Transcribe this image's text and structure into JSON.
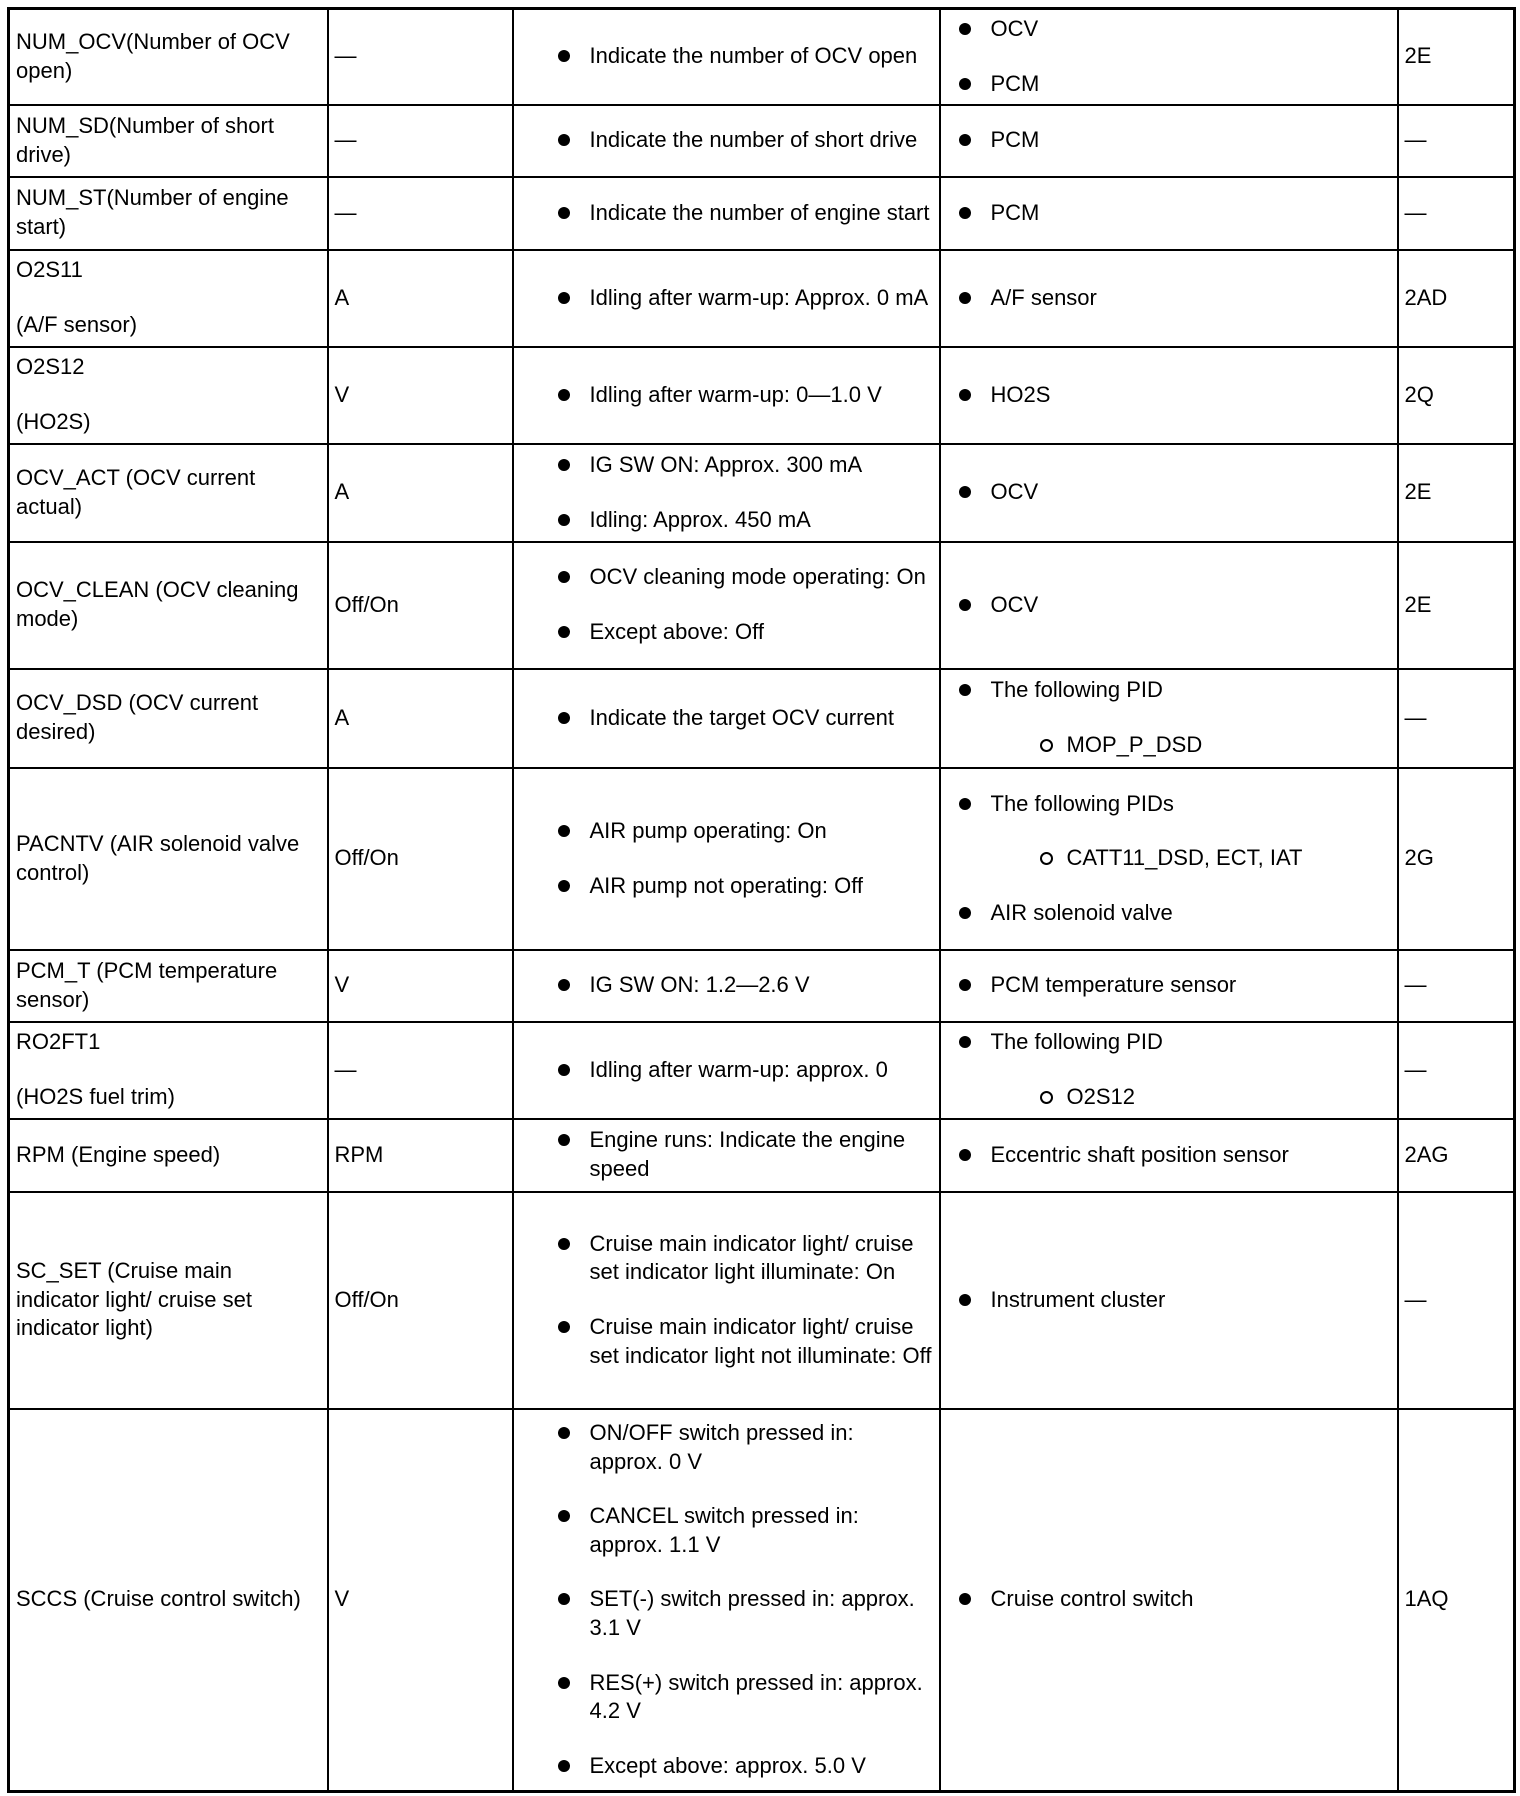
{
  "table": {
    "rows": [
      {
        "name": [
          "NUM_OCV(Number of OCV open)"
        ],
        "unit": "—",
        "conditions": [
          "Indicate the number of OCV open"
        ],
        "related": [
          {
            "text": "OCV"
          },
          {
            "text": "PCM"
          }
        ],
        "code": "2E"
      },
      {
        "name": [
          "NUM_SD(Number of short drive)"
        ],
        "unit": "—",
        "conditions": [
          "Indicate the number of short drive"
        ],
        "related": [
          {
            "text": "PCM"
          }
        ],
        "code": "—"
      },
      {
        "name": [
          "NUM_ST(Number of engine start)"
        ],
        "unit": "—",
        "conditions": [
          "Indicate the number of engine start"
        ],
        "related": [
          {
            "text": "PCM"
          }
        ],
        "code": "—"
      },
      {
        "name": [
          "O2S11",
          "(A/F sensor)"
        ],
        "unit": "A",
        "conditions": [
          "Idling after warm-up: Approx. 0 mA"
        ],
        "related": [
          {
            "text": "A/F sensor"
          }
        ],
        "code": "2AD"
      },
      {
        "name": [
          "O2S12",
          "(HO2S)"
        ],
        "unit": "V",
        "conditions": [
          "Idling after warm-up: 0—1.0 V"
        ],
        "related": [
          {
            "text": "HO2S"
          }
        ],
        "code": "2Q"
      },
      {
        "name": [
          "OCV_ACT (OCV current actual)"
        ],
        "unit": "A",
        "conditions": [
          "IG SW ON: Approx. 300 mA",
          "Idling: Approx. 450 mA"
        ],
        "related": [
          {
            "text": "OCV"
          }
        ],
        "code": "2E"
      },
      {
        "name": [
          "OCV_CLEAN (OCV cleaning mode)"
        ],
        "unit": "Off/On",
        "conditions": [
          "OCV cleaning mode operating: On",
          "Except above: Off"
        ],
        "related": [
          {
            "text": "OCV"
          }
        ],
        "code": "2E"
      },
      {
        "name": [
          "OCV_DSD (OCV current desired)"
        ],
        "unit": "A",
        "conditions": [
          "Indicate the target OCV current"
        ],
        "related": [
          {
            "text": "The following PID",
            "sub": [
              "MOP_P_DSD"
            ]
          }
        ],
        "code": "—"
      },
      {
        "name": [
          "PACNTV (AIR solenoid valve control)"
        ],
        "unit": "Off/On",
        "conditions": [
          "AIR pump operating: On",
          "AIR pump not operating: Off"
        ],
        "related": [
          {
            "text": "The following PIDs",
            "sub": [
              "CATT11_DSD, ECT, IAT"
            ]
          },
          {
            "text": "AIR solenoid valve"
          }
        ],
        "code": "2G"
      },
      {
        "name": [
          "PCM_T (PCM temperature sensor)"
        ],
        "unit": "V",
        "conditions": [
          "IG SW ON: 1.2—2.6 V"
        ],
        "related": [
          {
            "text": "PCM temperature sensor"
          }
        ],
        "code": "—"
      },
      {
        "name": [
          "RO2FT1",
          "(HO2S fuel trim)"
        ],
        "unit": "—",
        "conditions": [
          "Idling after warm-up: approx. 0"
        ],
        "related": [
          {
            "text": "The following PID",
            "sub": [
              "O2S12"
            ]
          }
        ],
        "code": "—"
      },
      {
        "name": [
          "RPM (Engine speed)"
        ],
        "unit": "RPM",
        "conditions": [
          "Engine runs: Indicate the engine speed"
        ],
        "related": [
          {
            "text": "Eccentric shaft position sensor"
          }
        ],
        "code": "2AG"
      },
      {
        "name": [
          "SC_SET (Cruise main indicator light/ cruise set indicator light)"
        ],
        "unit": "Off/On",
        "conditions": [
          "Cruise main indicator light/ cruise set indicator light illuminate: On",
          "Cruise main indicator light/ cruise set indicator light not illuminate: Off"
        ],
        "related": [
          {
            "text": "Instrument cluster"
          }
        ],
        "code": "—"
      },
      {
        "name": [
          "SCCS (Cruise control switch)"
        ],
        "unit": "V",
        "conditions": [
          "ON/OFF switch pressed in: approx. 0 V",
          "CANCEL switch pressed in: approx. 1.1 V",
          "SET(-) switch pressed in: approx. 3.1 V",
          "RES(+) switch pressed in: approx. 4.2 V",
          "Except above: approx. 5.0 V"
        ],
        "related": [
          {
            "text": "Cruise control switch"
          }
        ],
        "code": "1AQ"
      }
    ]
  }
}
